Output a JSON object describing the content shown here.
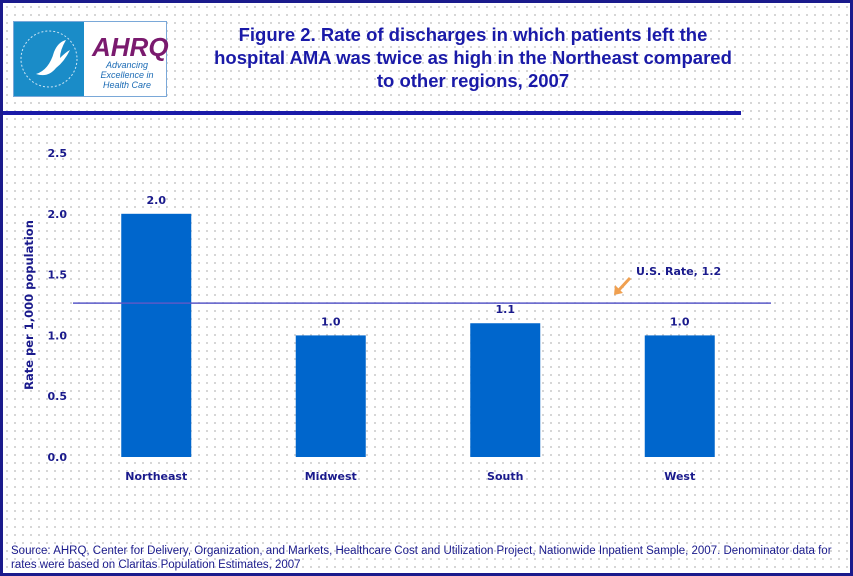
{
  "logo": {
    "agency": "AHRQ",
    "tagline": "Advancing Excellence in Health Care"
  },
  "title": "Figure 2. Rate of discharges in which patients left the hospital AMA was twice as high in the Northeast compared to other regions, 2007",
  "source": "Source: AHRQ, Center for Delivery, Organization, and Markets, Healthcare Cost and Utilization Project, Nationwide Inpatient Sample, 2007. Denominator data for rates were based on Claritas Population Estimates, 2007",
  "chart_data": {
    "type": "bar",
    "categories": [
      "Northeast",
      "Midwest",
      "South",
      "West"
    ],
    "values": [
      2.0,
      1.0,
      1.1,
      1.0
    ],
    "data_labels": [
      "2.0",
      "1.0",
      "1.1",
      "1.0"
    ],
    "ylabel": "Rate per 1,000 population",
    "xlabel": "",
    "ylim": [
      0,
      2.5
    ],
    "yticks": [
      "0.0",
      "0.5",
      "1.0",
      "1.5",
      "2.0",
      "2.5"
    ],
    "reference_line": {
      "value": 1.2,
      "label": "U.S. Rate, 1.2"
    },
    "grid": false,
    "colors": {
      "bar": "#0066cc",
      "text": "#1a1a8c",
      "line": "#5a5ac8",
      "arrow": "#f0a050"
    }
  }
}
